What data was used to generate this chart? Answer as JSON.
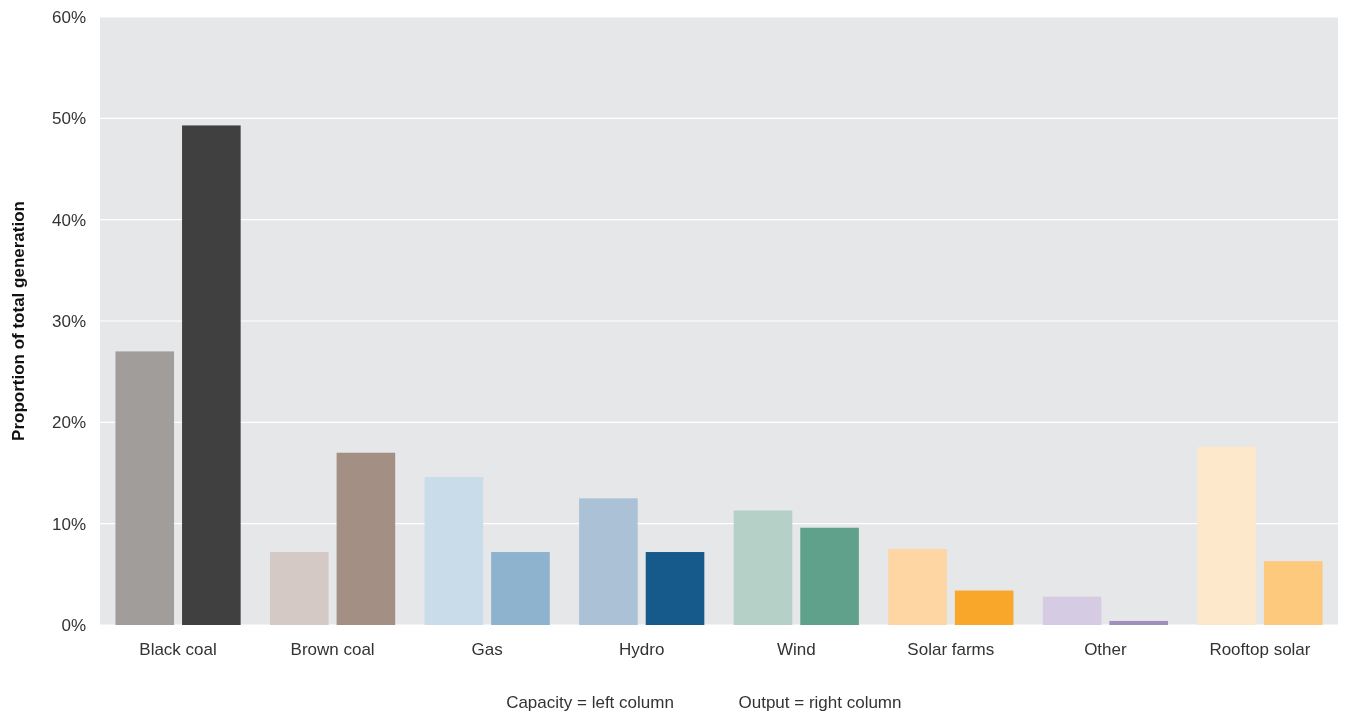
{
  "chart_data": {
    "type": "bar",
    "ylabel": "Proportion of total generation",
    "categories": [
      "Black coal",
      "Brown coal",
      "Gas",
      "Hydro",
      "Wind",
      "Solar farms",
      "Other",
      "Rooftop solar"
    ],
    "series": [
      {
        "colors": [
          "#a09d9a",
          "#d4c9c4",
          "#c9dce9",
          "#abc1d6",
          "#b5d0c7",
          "#fdd6a3",
          "#d5cce3",
          "#fde8cc"
        ],
        "values": [
          27,
          7.2,
          14.6,
          12.5,
          11.3,
          7.5,
          2.8,
          17.6
        ]
      },
      {
        "colors": [
          "#404040",
          "#a38f84",
          "#8db3cf",
          "#155a8a",
          "#5fa18a",
          "#f9a72b",
          "#a08fbb",
          "#fcc97d"
        ],
        "values": [
          49.3,
          17,
          7.2,
          7.2,
          9.6,
          3.4,
          0.4,
          6.3
        ]
      }
    ],
    "ylim": [
      0,
      60
    ],
    "yticks": [
      {
        "value": 0,
        "label": "0%"
      },
      {
        "value": 10,
        "label": "10%"
      },
      {
        "value": 20,
        "label": "20%"
      },
      {
        "value": 30,
        "label": "30%"
      },
      {
        "value": 40,
        "label": "40%"
      },
      {
        "value": 50,
        "label": "50%"
      },
      {
        "value": 60,
        "label": "60%"
      }
    ],
    "grid": "y",
    "annotations": [
      "Capacity = left column",
      "Output = right column"
    ]
  }
}
